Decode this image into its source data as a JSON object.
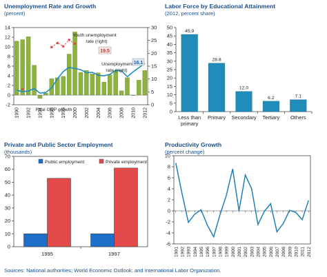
{
  "panels": {
    "unemp": {
      "title": "Unemployment Rate and Growth",
      "subtitle": "(percent)"
    },
    "labor": {
      "title": "Labor Force by Educational Attainment",
      "subtitle": "(2012, percent share)"
    },
    "emp": {
      "title": "Private and Public Sector Employment",
      "subtitle": "(thousands)"
    },
    "prod": {
      "title": "Productivity Growth",
      "subtitle": "(percent change)"
    }
  },
  "source": "Sources: National authorities; World Economic Outlook; and International Labor Organization.",
  "colors": {
    "green": "#8db33f",
    "blue": "#1f8cba",
    "red": "#e24a4a",
    "pubblue": "#1e6fc9",
    "line": "#1f7fb4"
  },
  "chart_data": [
    {
      "id": "unemp",
      "type": "bar+line",
      "title": "Unemployment Rate and Growth",
      "ylabel": "(percent)",
      "x": [
        "1990",
        "1991",
        "1992",
        "1993",
        "1994",
        "1995",
        "1996",
        "1997",
        "1998",
        "1999",
        "2000",
        "2001",
        "2002",
        "2003",
        "2004",
        "2005",
        "2006",
        "2007",
        "2008",
        "2009",
        "2010",
        "2011",
        "2012"
      ],
      "xtick_labels": [
        "1990",
        "1992",
        "1994",
        "1996",
        "1998",
        "2000",
        "2002",
        "2004",
        "2006",
        "2008",
        "2010",
        "2012"
      ],
      "ylim_left": [
        -2,
        14
      ],
      "ylim_right": [
        0,
        30
      ],
      "series": [
        {
          "name": "Real GDP growth",
          "axis": "left",
          "kind": "bar",
          "values": [
            11.2,
            11.5,
            12.1,
            6.2,
            -0.7,
            0.4,
            3.4,
            3.6,
            3.9,
            8.5,
            13.1,
            4.7,
            5.1,
            4.4,
            4.6,
            2.7,
            4.2,
            5.0,
            0.9,
            3.6,
            0.0,
            3.1,
            5.1
          ]
        },
        {
          "name": "Unemployment rate (right)",
          "axis": "right",
          "kind": "line",
          "values": [
            5.6,
            5.1,
            5.3,
            6.3,
            4.5,
            4.8,
            6.5,
            10.1,
            12.9,
            14.5,
            14.1,
            13.6,
            12.4,
            12.6,
            11.5,
            11.2,
            11.8,
            13.4,
            13.2,
            10.9,
            12.8,
            14.4,
            16.1
          ]
        },
        {
          "name": "Youth unemployment rate (right)",
          "axis": "right",
          "kind": "dotted",
          "values": [
            null,
            6.0,
            null,
            null,
            null,
            null,
            22.4,
            24.0,
            22.7,
            25.2,
            23.7,
            null,
            null,
            null,
            null,
            null,
            null,
            null,
            null,
            null,
            null,
            null,
            null
          ]
        }
      ],
      "labels": {
        "youth": [
          "Youth unemployment",
          "rate (right)"
        ],
        "unemp": [
          "Unemployment",
          "rate (right)"
        ],
        "gdp": "Real GDP  growth"
      },
      "annotations": {
        "youth": "19.5",
        "unemp": "16.1"
      }
    },
    {
      "id": "labor",
      "type": "bar",
      "title": "Labor Force by Educational Attainment",
      "categories": [
        [
          "Less than",
          "primary"
        ],
        [
          "Primary"
        ],
        [
          "Secondary"
        ],
        [
          "Tertiary"
        ],
        [
          "Others"
        ]
      ],
      "values": [
        45.9,
        28.8,
        12.0,
        6.2,
        7.1
      ],
      "value_labels": [
        "45.9",
        "28.8",
        "12.0",
        "6.2",
        "7.1"
      ],
      "ylim": [
        0,
        50
      ],
      "yticks": [
        0,
        5,
        10,
        15,
        20,
        25,
        30,
        35,
        40,
        45,
        50
      ]
    },
    {
      "id": "emp",
      "type": "bar",
      "title": "Private and Public Sector Employment",
      "categories": [
        "1995",
        "1997"
      ],
      "series": [
        {
          "name": "Public employment",
          "values": [
            10,
            10
          ]
        },
        {
          "name": "Private employment",
          "values": [
            53,
            61
          ]
        }
      ],
      "ylim": [
        0,
        70
      ],
      "yticks": [
        0,
        10,
        20,
        30,
        40,
        50,
        60,
        70
      ]
    },
    {
      "id": "prod",
      "type": "line",
      "title": "Productivity Growth",
      "x": [
        "1991",
        "1992",
        "1993",
        "1994",
        "1995",
        "1996",
        "1997",
        "1998",
        "1999",
        "2000",
        "2001",
        "2002",
        "2003",
        "2004",
        "2005",
        "2006",
        "2007",
        "2008",
        "2009",
        "2010",
        "2011",
        "2012"
      ],
      "values": [
        8.7,
        3.1,
        -2.1,
        -0.6,
        0.2,
        -2.6,
        -4.7,
        -0.7,
        2.8,
        7.6,
        0.0,
        6.5,
        4.0,
        -2.5,
        -0.1,
        1.3,
        -3.8,
        -2.3,
        0.1,
        -0.3,
        -1.6,
        1.9
      ],
      "ylim": [
        -6,
        10
      ],
      "yticks": [
        -6,
        -4,
        -2,
        0,
        2,
        4,
        6,
        8,
        10
      ]
    }
  ]
}
